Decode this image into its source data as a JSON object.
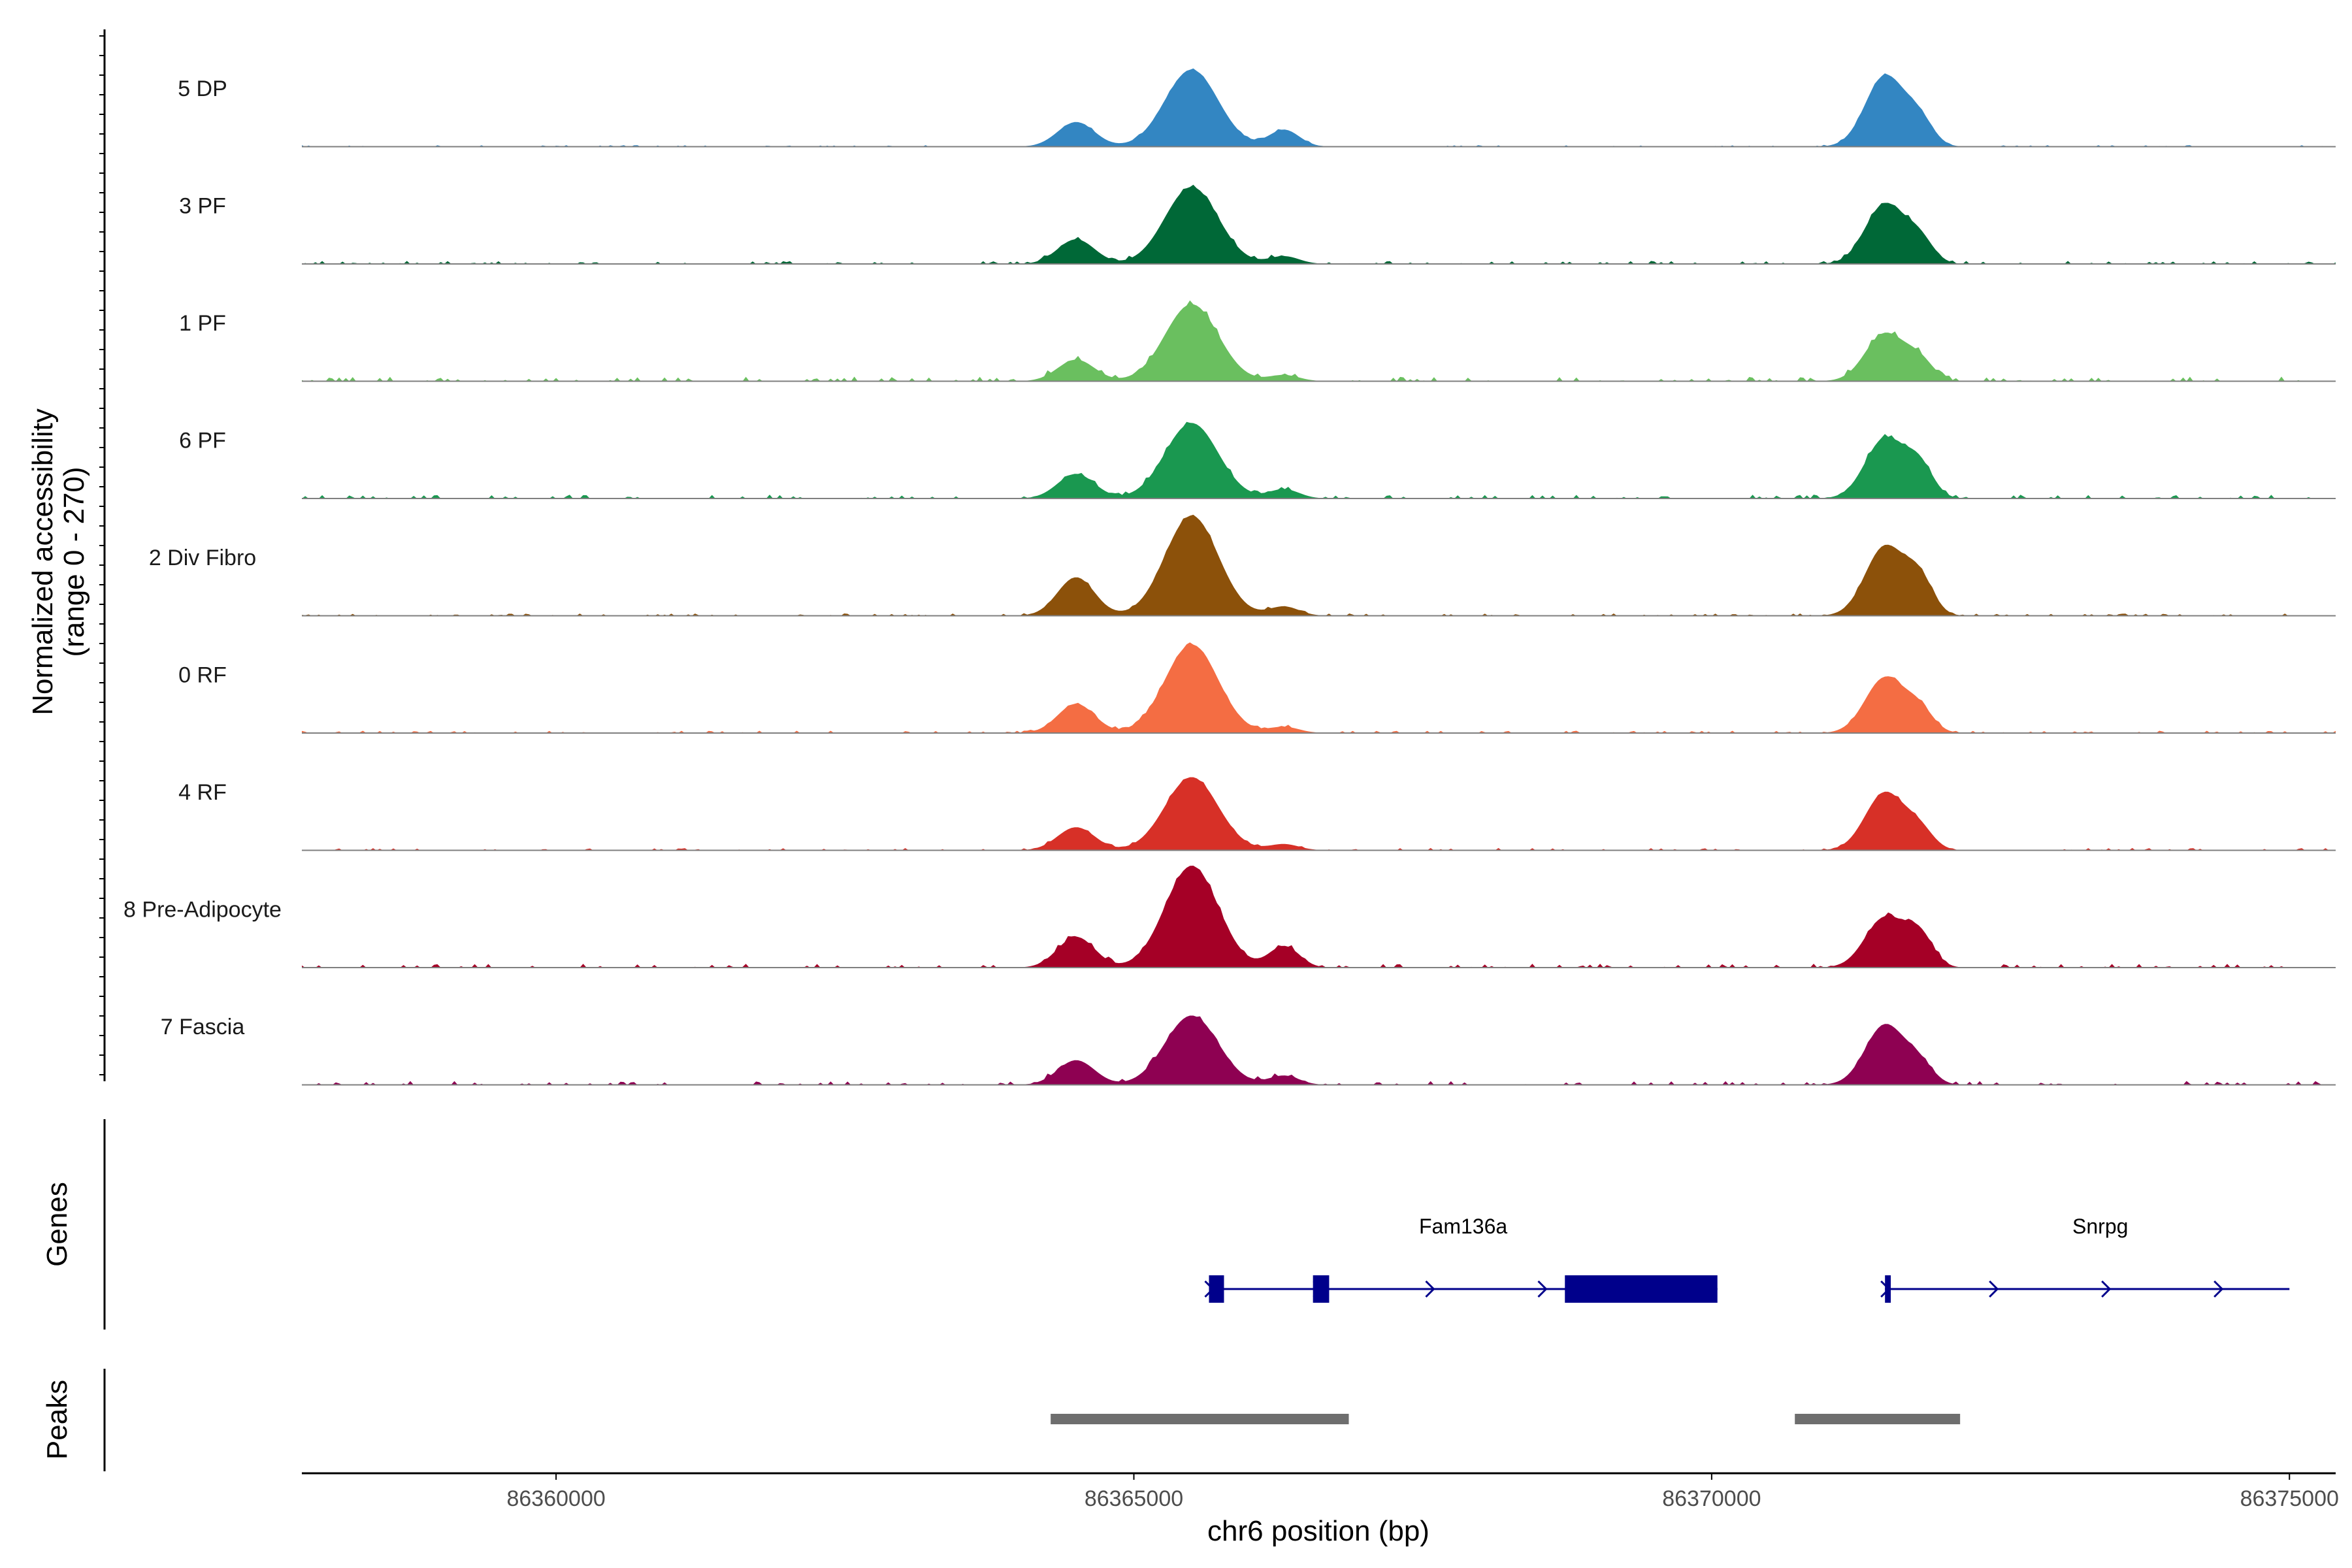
{
  "chart_data": {
    "type": "area",
    "chromosome": "chr6",
    "xlabel": "chr6 position (bp)",
    "xlim": [
      86357800,
      86375400
    ],
    "x_ticks": [
      86360000,
      86365000,
      86370000,
      86375000
    ],
    "x_tick_labels": [
      "86360000",
      "86365000",
      "86370000",
      "86375000"
    ],
    "ylabel_line1": "Normalized accessibility",
    "ylabel_line2": "(range 0 - 270)",
    "ylim": [
      0,
      270
    ],
    "peak_positions": [
      86364500,
      86365500,
      86366300,
      86371500,
      86371800
    ],
    "tracks": [
      {
        "name": "5 DP",
        "color": "#3386C2",
        "heights": [
          0.32,
          1.0,
          0.22,
          0.92,
          0.32
        ],
        "noise": 0.02
      },
      {
        "name": "3 PF",
        "color": "#006837",
        "heights": [
          0.32,
          1.0,
          0.1,
          0.78,
          0.3
        ],
        "noise": 0.04
      },
      {
        "name": "1 PF",
        "color": "#6ABF5F",
        "heights": [
          0.28,
          1.0,
          0.08,
          0.62,
          0.25
        ],
        "noise": 0.06
      },
      {
        "name": "6 PF",
        "color": "#1A9850",
        "heights": [
          0.32,
          0.98,
          0.12,
          0.78,
          0.4
        ],
        "noise": 0.05
      },
      {
        "name": "2 Div Fibro",
        "color": "#8C510A",
        "heights": [
          0.5,
          1.3,
          0.12,
          0.9,
          0.45
        ],
        "noise": 0.03
      },
      {
        "name": "0 RF",
        "color": "#F46D43",
        "heights": [
          0.38,
          1.15,
          0.08,
          0.72,
          0.28
        ],
        "noise": 0.03
      },
      {
        "name": "4 RF",
        "color": "#D73027",
        "heights": [
          0.3,
          0.95,
          0.08,
          0.75,
          0.25
        ],
        "noise": 0.03
      },
      {
        "name": "8 Pre-Adipocyte",
        "color": "#A50026",
        "heights": [
          0.4,
          1.32,
          0.28,
          0.65,
          0.4
        ],
        "noise": 0.05
      },
      {
        "name": "7 Fascia",
        "color": "#8E0152",
        "heights": [
          0.32,
          0.9,
          0.12,
          0.78,
          0.25
        ],
        "noise": 0.05
      }
    ],
    "genes": [
      {
        "name": "Fam136a",
        "start": 86365650,
        "end": 86370050,
        "exons": [
          [
            86365650,
            86365780
          ],
          [
            86366550,
            86366690
          ],
          [
            86368730,
            86370050
          ]
        ],
        "strand": "+"
      },
      {
        "name": "Snrpg",
        "start": 86371500,
        "end": 86375000,
        "exons": [
          [
            86371500,
            86371550
          ]
        ],
        "strand": "+"
      }
    ],
    "peaks": [
      {
        "start": 86364280,
        "end": 86366860
      },
      {
        "start": 86370720,
        "end": 86372150
      }
    ],
    "panel_titles": {
      "genes": "Genes",
      "peaks": "Peaks"
    },
    "colors": {
      "gene": "#00008B",
      "peak": "#6E6E6E",
      "baseline": "#7F7F7F",
      "axis": "#000000"
    }
  }
}
